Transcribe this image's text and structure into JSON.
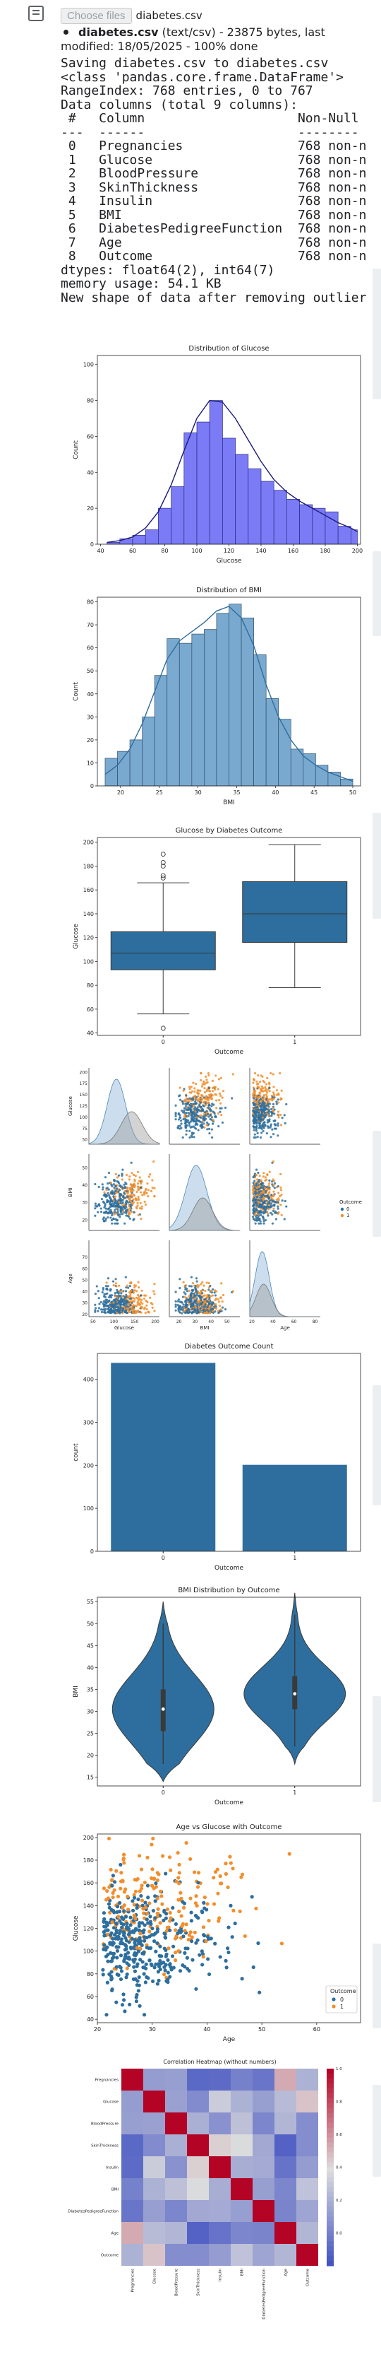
{
  "file_input": {
    "button_label": "Choose files",
    "file_name": "diabetes.csv"
  },
  "upload_info": {
    "name": "diabetes.csv",
    "detail": "(text/csv) - 23875 bytes, last modified: 18/05/2025 - 100% done"
  },
  "stdout_lines": [
    "Saving diabetes.csv to diabetes.csv",
    "<class 'pandas.core.frame.DataFrame'>",
    "RangeIndex: 768 entries, 0 to 767",
    "Data columns (total 9 columns):",
    " #   Column                    Non-Null",
    "---  ------                    --------",
    " 0   Pregnancies               768 non-n",
    " 1   Glucose                   768 non-n",
    " 2   BloodPressure             768 non-n",
    " 3   SkinThickness             768 non-n",
    " 4   Insulin                   768 non-n",
    " 5   BMI                       768 non-n",
    " 6   DiabetesPedigreeFunction  768 non-n",
    " 7   Age                       768 non-n",
    " 8   Outcome                   768 non-n",
    "dtypes: float64(2), int64(7)",
    "memory usage: 54.1 KB",
    "New shape of data after removing outlier"
  ],
  "colors": {
    "glucose_bar": "#7b7bf5",
    "glucose_edge": "#2a2a8a",
    "glucose_kde": "#1a1a7a",
    "bmi_bar": "#7aa9cf",
    "bmi_kde": "#2f6d9c",
    "seaborn_blue": "#2d6e9e",
    "seaborn_orange": "#f28e2b",
    "grey_kde": "#9e9e9e"
  },
  "chart_data": [
    {
      "type": "bar",
      "title": "Distribution of Glucose",
      "xlabel": "Glucose",
      "ylabel": "Count",
      "bin_edges": [
        44,
        52,
        60,
        68,
        76,
        84,
        92,
        100,
        108,
        116,
        124,
        132,
        140,
        148,
        156,
        164,
        172,
        180,
        188,
        196,
        200
      ],
      "values": [
        1,
        3,
        5,
        8,
        20,
        32,
        62,
        68,
        80,
        59,
        50,
        42,
        35,
        30,
        25,
        22,
        20,
        18,
        10,
        8
      ],
      "kde": [
        1,
        2,
        4,
        9,
        18,
        33,
        52,
        70,
        80,
        79,
        70,
        58,
        46,
        36,
        29,
        24,
        20,
        16,
        12,
        9,
        7
      ],
      "xlim": [
        38,
        202
      ],
      "ylim": [
        0,
        105
      ],
      "xticks": [
        40,
        60,
        80,
        100,
        120,
        140,
        160,
        180,
        200
      ],
      "yticks": [
        0,
        20,
        40,
        60,
        80,
        100
      ]
    },
    {
      "type": "bar",
      "title": "Distribution of BMI",
      "xlabel": "BMI",
      "ylabel": "Count",
      "bin_edges": [
        18,
        19.6,
        21.2,
        22.8,
        24.4,
        26,
        27.6,
        29.2,
        30.8,
        32.4,
        34,
        35.6,
        37.2,
        38.8,
        40.4,
        42,
        43.6,
        45.2,
        46.8,
        48.4,
        50
      ],
      "values": [
        12,
        15,
        20,
        30,
        48,
        64,
        62,
        66,
        68,
        75,
        79,
        73,
        57,
        38,
        29,
        16,
        14,
        9,
        6,
        3
      ],
      "kde": [
        5,
        9,
        16,
        27,
        41,
        55,
        63,
        67,
        71,
        76,
        78,
        73,
        61,
        44,
        30,
        20,
        13,
        9,
        6,
        4,
        2
      ],
      "xlim": [
        17,
        51
      ],
      "ylim": [
        0,
        82
      ],
      "xticks": [
        20,
        25,
        30,
        35,
        40,
        45,
        50
      ],
      "yticks": [
        0,
        10,
        20,
        30,
        40,
        50,
        60,
        70,
        80
      ]
    },
    {
      "type": "box",
      "title": "Glucose by Diabetes Outcome",
      "xlabel": "Outcome",
      "ylabel": "Glucose",
      "categories": [
        "0",
        "1"
      ],
      "boxes": [
        {
          "whislo": 56,
          "q1": 93,
          "med": 107,
          "q3": 125,
          "whishi": 166,
          "fliers": [
            44,
            170,
            172,
            180,
            183,
            190
          ]
        },
        {
          "whislo": 78,
          "q1": 116,
          "med": 140,
          "q3": 167,
          "whishi": 198,
          "fliers": []
        }
      ],
      "ylim": [
        38,
        204
      ],
      "yticks": [
        40,
        60,
        80,
        100,
        120,
        140,
        160,
        180,
        200
      ]
    },
    {
      "type": "scatter",
      "title": "",
      "variables": [
        "Glucose",
        "BMI",
        "Age"
      ],
      "hue": "Outcome",
      "legend": {
        "title": "Outcome",
        "labels": [
          "0",
          "1"
        ]
      },
      "xticks": {
        "Glucose": [
          50,
          100,
          150,
          200
        ],
        "BMI": [
          20,
          30,
          40,
          50
        ],
        "Age": [
          20,
          40,
          60,
          80
        ]
      },
      "yticks": {
        "Glucose": [
          50,
          75,
          100,
          125,
          150,
          175,
          200
        ],
        "BMI": [
          20,
          30,
          40,
          50
        ],
        "Age": [
          20,
          30,
          40,
          50,
          60,
          70
        ]
      },
      "note": "pairplot"
    },
    {
      "type": "bar",
      "title": "Diabetes Outcome Count",
      "xlabel": "Outcome",
      "ylabel": "count",
      "categories": [
        "0",
        "1"
      ],
      "values": [
        438,
        201
      ],
      "ylim": [
        0,
        460
      ],
      "yticks": [
        0,
        100,
        200,
        300,
        400
      ]
    },
    {
      "type": "violin",
      "title": "BMI Distribution by Outcome",
      "xlabel": "Outcome",
      "ylabel": "BMI",
      "categories": [
        "0",
        "1"
      ],
      "summary": [
        {
          "min": 18,
          "q1": 25.5,
          "med": 30.5,
          "q3": 35,
          "max": 50
        },
        {
          "min": 22,
          "q1": 30.5,
          "med": 34,
          "q3": 38,
          "max": 52
        }
      ],
      "ylim": [
        13,
        56
      ],
      "yticks": [
        15,
        20,
        25,
        30,
        35,
        40,
        45,
        50,
        55
      ]
    },
    {
      "type": "scatter",
      "title": "Age vs Glucose with Outcome",
      "xlabel": "Age",
      "ylabel": "Glucose",
      "legend": {
        "title": "Outcome",
        "labels": [
          "0",
          "1"
        ],
        "position": "lower-right"
      },
      "xlim": [
        20,
        68
      ],
      "ylim": [
        37,
        203
      ],
      "xticks": [
        20,
        30,
        40,
        50,
        60
      ],
      "yticks": [
        40,
        60,
        80,
        100,
        120,
        140,
        160,
        180,
        200
      ]
    },
    {
      "type": "heatmap",
      "title": "Correlation Heatmap (without numbers)",
      "labels": [
        "Pregnancies",
        "Glucose",
        "BloodPressure",
        "SkinThickness",
        "Insulin",
        "BMI",
        "DiabetesPedigreeFunction",
        "Age",
        "Outcome"
      ],
      "matrix": [
        [
          1.0,
          0.13,
          0.14,
          -0.08,
          -0.07,
          0.02,
          -0.03,
          0.54,
          0.22
        ],
        [
          0.13,
          1.0,
          0.15,
          0.06,
          0.33,
          0.22,
          0.14,
          0.26,
          0.47
        ],
        [
          0.14,
          0.15,
          1.0,
          0.21,
          0.09,
          0.28,
          0.04,
          0.24,
          0.07
        ],
        [
          -0.08,
          0.06,
          0.21,
          1.0,
          0.44,
          0.39,
          0.18,
          -0.11,
          0.07
        ],
        [
          -0.07,
          0.33,
          0.09,
          0.44,
          1.0,
          0.2,
          0.19,
          -0.04,
          0.13
        ],
        [
          0.02,
          0.22,
          0.28,
          0.39,
          0.2,
          1.0,
          0.14,
          0.04,
          0.29
        ],
        [
          -0.03,
          0.14,
          0.04,
          0.18,
          0.19,
          0.14,
          1.0,
          0.03,
          0.17
        ],
        [
          0.54,
          0.26,
          0.24,
          -0.11,
          -0.04,
          0.04,
          0.03,
          1.0,
          0.24
        ],
        [
          0.22,
          0.47,
          0.07,
          0.07,
          0.13,
          0.29,
          0.17,
          0.24,
          1.0
        ]
      ],
      "colorbar_ticks": [
        "1.0",
        "0.8",
        "0.6",
        "0.4",
        "0.2",
        "0.0"
      ]
    }
  ]
}
